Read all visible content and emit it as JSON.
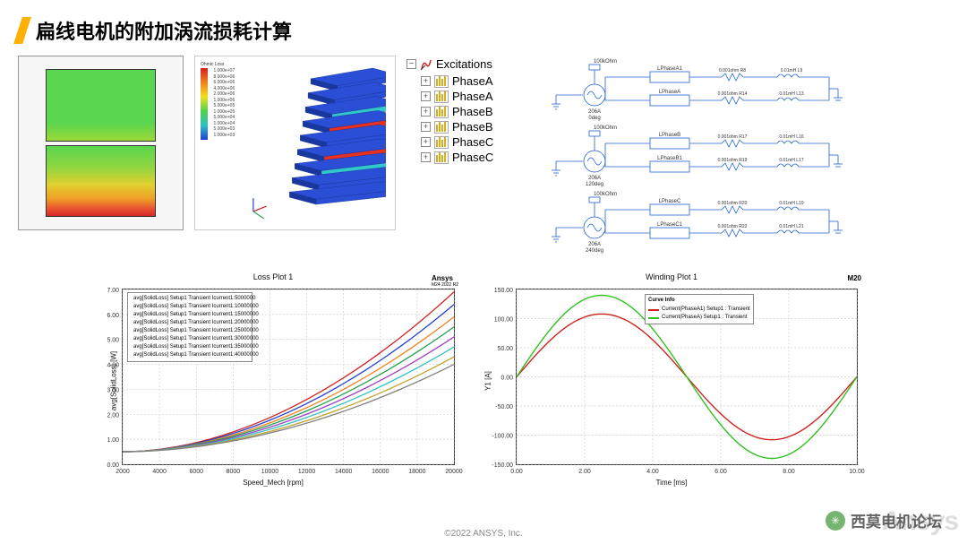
{
  "title": "扁线电机的附加涡流损耗计算",
  "footer": "©2022 ANSYS, Inc.",
  "watermark_text": "西莫电机论坛",
  "ansys_wm": "Ansys",
  "heatmap": {
    "grid_bg": "#f4f4f4",
    "border": "#999999",
    "top_gradient": [
      "#5bd650",
      "#9dd836"
    ],
    "bot_gradient": [
      "#5bd650",
      "#e0d030",
      "#f0a028",
      "#d62828"
    ]
  },
  "iso3d": {
    "legend_title": "Ohmic Loss",
    "legend_ticks": [
      "1.000e+07",
      "8.000e+06",
      "6.000e+06",
      "4.000e+06",
      "2.000e+06",
      "1.000e+06",
      "5.000e+05",
      "1.000e+05",
      "5.000e+04",
      "1.000e+04",
      "5.000e+03",
      "1.000e+03"
    ],
    "slab_color": "#2a4fd6",
    "hot_color": "#e83020",
    "mid_color": "#30c8c8"
  },
  "tree": {
    "root": "Excitations",
    "items": [
      "PhaseA",
      "PhaseA",
      "PhaseB",
      "PhaseB",
      "PhaseC",
      "PhaseC"
    ]
  },
  "circuit": {
    "rows": [
      {
        "top_label": "100kOhm",
        "src": "206A\n0deg",
        "names": [
          "LPhaseA1",
          "LPhaseA"
        ],
        "r": [
          "0.001ohm R8",
          "0.001ohm R14"
        ],
        "l": [
          "0.01mH L9",
          "0.01mH L13"
        ]
      },
      {
        "top_label": "100kOhm",
        "src": "206A\n120deg",
        "names": [
          "LPhaseB",
          "LPhaseB1"
        ],
        "r": [
          "0.001ohm R17",
          "0.001ohm R19"
        ],
        "l": [
          "0.01mH L16",
          "0.01mH L17"
        ]
      },
      {
        "top_label": "100kOhm",
        "src": "206A\n240deg",
        "names": [
          "LPhaseC",
          "LPhaseC1"
        ],
        "r": [
          "0.001ohm R20",
          "0.001ohm R22"
        ],
        "l": [
          "0.01mH L19",
          "0.01mH L21"
        ]
      }
    ],
    "wire_color": "#2060d0",
    "text_color": "#2060d0",
    "fontsize": 6
  },
  "loss_chart": {
    "title": "Loss Plot 1",
    "brand": "Ansys",
    "sub": "M24 2022 R2",
    "xlabel": "Speed_Mech [rpm]",
    "ylabel": "avg[SolidLoss] [W]",
    "xlim": [
      2000,
      20000
    ],
    "xtick_step": 2000,
    "ylim": [
      0,
      7
    ],
    "ytick_step": 1,
    "grid_color": "#cccccc",
    "series": [
      {
        "label": "avg[SolidLoss] Setup1 Transient Icurrent1:5000000",
        "color": "#d02020",
        "y_end": 6.9
      },
      {
        "label": "avg[SolidLoss] Setup1 Transient Icurrent1:10000000",
        "color": "#2040d0",
        "y_end": 6.4
      },
      {
        "label": "avg[SolidLoss] Setup1 Transient Icurrent1:15000000",
        "color": "#f08020",
        "y_end": 5.9
      },
      {
        "label": "avg[SolidLoss] Setup1 Transient Icurrent1:20000000",
        "color": "#20a050",
        "y_end": 5.5
      },
      {
        "label": "avg[SolidLoss] Setup1 Transient Icurrent1:25000000",
        "color": "#a040c0",
        "y_end": 5.1
      },
      {
        "label": "avg[SolidLoss] Setup1 Transient Icurrent1:30000000",
        "color": "#30c0c0",
        "y_end": 4.7
      },
      {
        "label": "avg[SolidLoss] Setup1 Transient Icurrent1:35000000",
        "color": "#c0a030",
        "y_end": 4.3
      },
      {
        "label": "avg[SolidLoss] Setup1 Transient Icurrent1:40000000",
        "color": "#808080",
        "y_end": 4.0
      }
    ]
  },
  "wind_chart": {
    "title": "Winding Plot 1",
    "brand": "M20",
    "xlabel": "Time [ms]",
    "ylabel": "Y1 [A]",
    "xlim": [
      0,
      10
    ],
    "xtick_step": 2,
    "ylim": [
      -150,
      150
    ],
    "yticks": [
      -150,
      -100,
      -50,
      0,
      50,
      100,
      150
    ],
    "ytick_labels": [
      "-150.00",
      "-100.00",
      "-50.00",
      "0.00",
      "50.00",
      "100.00",
      "150.00"
    ],
    "grid_color": "#cccccc",
    "legend_title": "Curve Info",
    "series": [
      {
        "label": "Current(PhaseA1) Setup1 : Transient",
        "color": "#d02020",
        "amp": 108,
        "phase": 0
      },
      {
        "label": "Current(PhaseA) Setup1 : Transient",
        "color": "#30c020",
        "amp": 140,
        "phase": 0
      }
    ]
  }
}
